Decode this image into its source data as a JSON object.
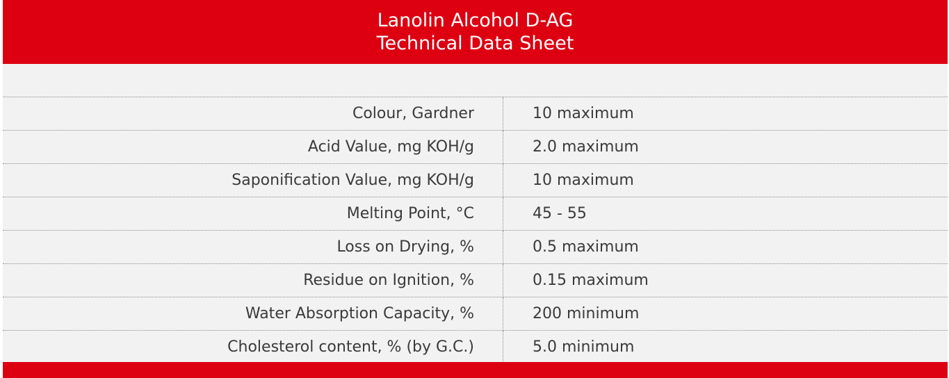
{
  "header": {
    "title_line1": "Lanolin Alcohol D-AG",
    "title_line2": "Technical Data Sheet"
  },
  "colors": {
    "brand_red": "#dd0011",
    "row_background": "#f2f2f2",
    "text": "#3a3a3a"
  },
  "specs": [
    {
      "property": "Colour, Gardner",
      "value": "10 maximum"
    },
    {
      "property": "Acid Value, mg KOH/g",
      "value": "2.0 maximum"
    },
    {
      "property": "Saponification Value, mg KOH/g",
      "value": "10 maximum"
    },
    {
      "property": "Melting Point, °C",
      "value": "45 - 55"
    },
    {
      "property": "Loss on Drying, %",
      "value": "0.5 maximum"
    },
    {
      "property": "Residue on Ignition, %",
      "value": "0.15 maximum"
    },
    {
      "property": "Water Absorption Capacity, %",
      "value": "200 minimum"
    },
    {
      "property": "Cholesterol content, % (by G.C.)",
      "value": "5.0 minimum"
    }
  ]
}
